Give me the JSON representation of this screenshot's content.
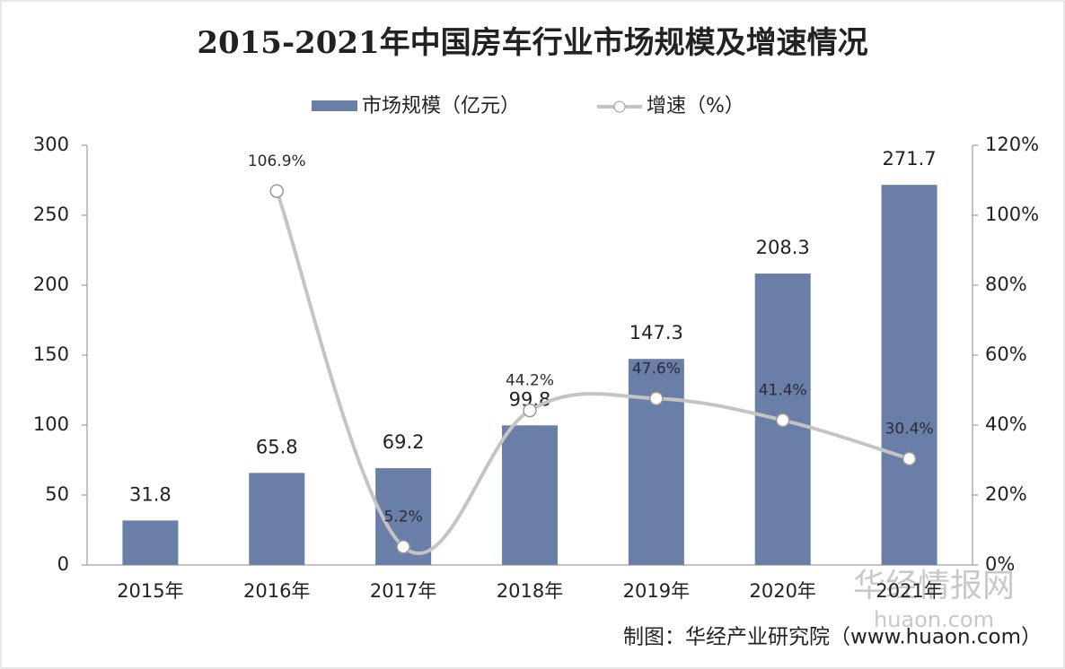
{
  "chart_data": {
    "type": "bar-line",
    "title": "2015-2021年中国房车行业市场规模及增速情况",
    "categories": [
      "2015年",
      "2016年",
      "2017年",
      "2018年",
      "2019年",
      "2020年",
      "2021年"
    ],
    "series": [
      {
        "name": "市场规模（亿元）",
        "type": "bar",
        "color": "#6a7fa8",
        "values": [
          31.8,
          65.8,
          69.2,
          99.8,
          147.3,
          208.3,
          271.7
        ]
      },
      {
        "name": "增速（%）",
        "type": "line",
        "axis": "y2",
        "color": "#c4c4c4",
        "values": [
          null,
          106.9,
          5.2,
          44.2,
          47.6,
          41.4,
          30.4
        ],
        "value_labels": [
          null,
          "106.9%",
          "5.2%",
          "44.2%",
          "47.6%",
          "41.4%",
          "30.4%"
        ]
      }
    ],
    "ylim": [
      0,
      300
    ],
    "yticks": [
      0,
      50,
      100,
      150,
      200,
      250,
      300
    ],
    "y2lim": [
      0,
      120
    ],
    "y2ticks": [
      {
        "value": 0,
        "label": "0%"
      },
      {
        "value": 20,
        "label": "20%"
      },
      {
        "value": 40,
        "label": "40%"
      },
      {
        "value": 60,
        "label": "60%"
      },
      {
        "value": 80,
        "label": "80%"
      },
      {
        "value": 100,
        "label": "100%"
      },
      {
        "value": 120,
        "label": "120%"
      }
    ],
    "source": "制图：华经产业研究院（www.huaon.com）",
    "watermark": [
      "华经情报网",
      "huaon.com"
    ]
  }
}
